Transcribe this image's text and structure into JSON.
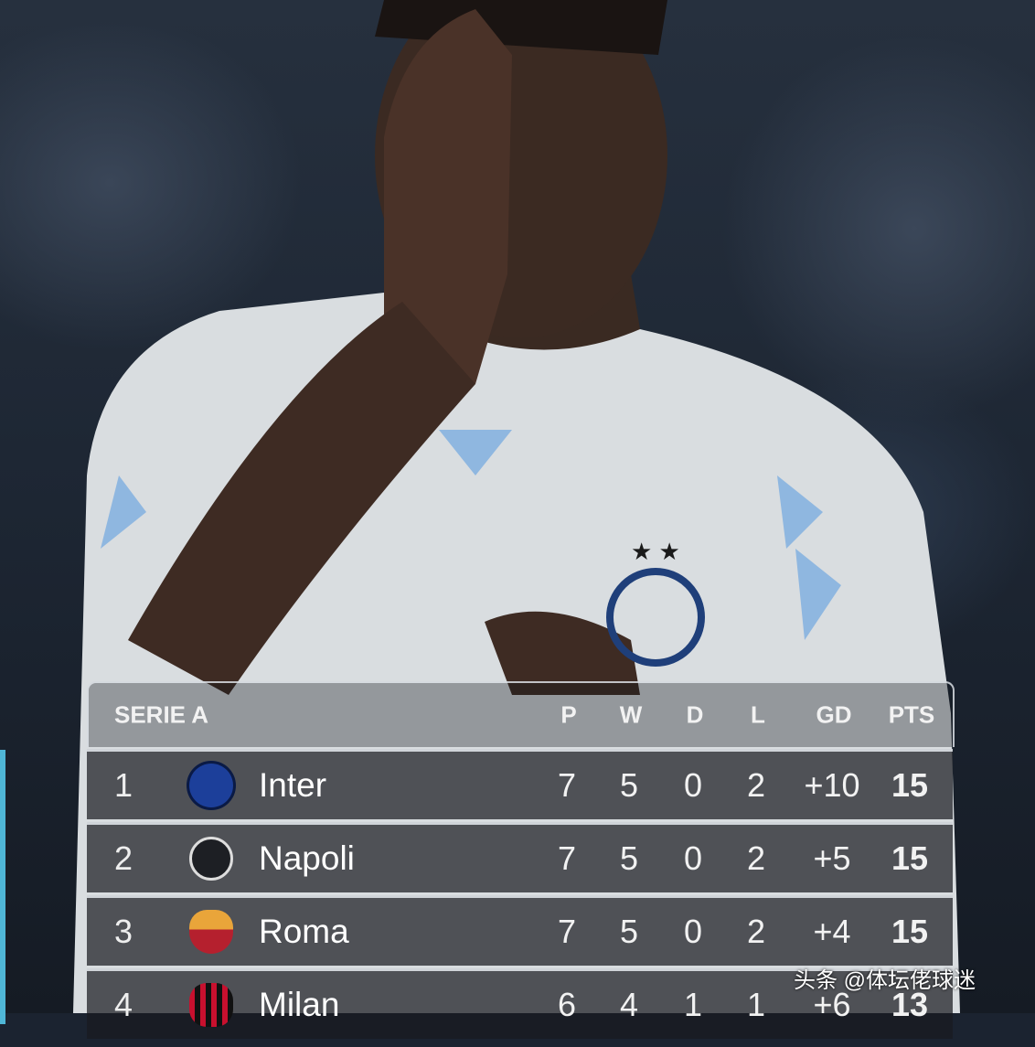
{
  "table": {
    "title": "SERIE A",
    "columns": [
      "P",
      "W",
      "D",
      "L",
      "GD",
      "PTS"
    ],
    "rows": [
      {
        "rank": "1",
        "team": "Inter",
        "logo": "inter-crest-icon",
        "P": "7",
        "W": "5",
        "D": "0",
        "L": "2",
        "GD": "+10",
        "PTS": "15"
      },
      {
        "rank": "2",
        "team": "Napoli",
        "logo": "napoli-crest-icon",
        "P": "7",
        "W": "5",
        "D": "0",
        "L": "2",
        "GD": "+5",
        "PTS": "15"
      },
      {
        "rank": "3",
        "team": "Roma",
        "logo": "roma-crest-icon",
        "P": "7",
        "W": "5",
        "D": "0",
        "L": "2",
        "GD": "+4",
        "PTS": "15"
      },
      {
        "rank": "4",
        "team": "Milan",
        "logo": "milan-crest-icon",
        "P": "6",
        "W": "4",
        "D": "1",
        "L": "1",
        "GD": "+6",
        "PTS": "13"
      }
    ],
    "accent_color": "#4fb6d6"
  },
  "watermark": "头条 @体坛佬球迷"
}
